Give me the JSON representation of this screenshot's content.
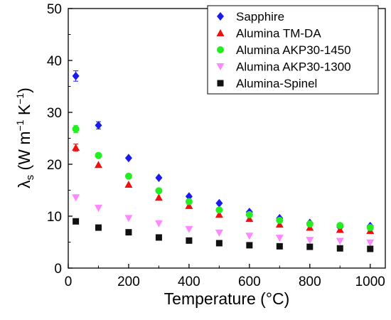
{
  "chart_data": {
    "type": "scatter",
    "title": "",
    "xlabel": "Temperature (°C)",
    "ylabel": {
      "symbol": "λ",
      "sub": "s",
      "units_open": " (W m",
      "exp1": "−1",
      "units_mid": " K",
      "exp2": "−1",
      "units_close": ")"
    },
    "xlim": [
      0,
      1050
    ],
    "ylim": [
      0,
      50
    ],
    "xticks": [
      0,
      200,
      400,
      600,
      800,
      1000
    ],
    "yticks": [
      0,
      10,
      20,
      30,
      40,
      50
    ],
    "grid": false,
    "legend_position": "top-right",
    "series": [
      {
        "name": "Sapphire",
        "marker": "diamond",
        "color": "#1a1aee",
        "points": [
          [
            25,
            37.0
          ],
          [
            100,
            27.5
          ],
          [
            200,
            21.2
          ],
          [
            300,
            17.4
          ],
          [
            400,
            13.8
          ],
          [
            500,
            12.5
          ],
          [
            600,
            10.8
          ],
          [
            700,
            9.6
          ],
          [
            800,
            8.7
          ],
          [
            900,
            7.9
          ],
          [
            1000,
            8.1
          ]
        ],
        "errors": [
          1.0,
          0.7,
          0.5,
          0.4,
          0.3,
          0.3,
          0.3,
          0.2,
          0.2,
          0.2,
          0.2
        ]
      },
      {
        "name": "Alumina TM-DA",
        "marker": "triangle-up",
        "color": "#ee1111",
        "points": [
          [
            25,
            23.2
          ],
          [
            100,
            19.9
          ],
          [
            200,
            16.1
          ],
          [
            300,
            13.6
          ],
          [
            400,
            12.0
          ],
          [
            500,
            10.3
          ],
          [
            600,
            9.5
          ],
          [
            700,
            8.4
          ],
          [
            800,
            7.8
          ],
          [
            900,
            7.4
          ],
          [
            1000,
            7.2
          ]
        ],
        "errors": [
          0.7,
          0.5,
          0.4,
          0.3,
          0.3,
          0.2,
          0.2,
          0.2,
          0.2,
          0.2,
          0.2
        ]
      },
      {
        "name": "Alumina AKP30-1450",
        "marker": "circle",
        "color": "#22ee22",
        "points": [
          [
            25,
            26.8
          ],
          [
            100,
            21.7
          ],
          [
            200,
            17.7
          ],
          [
            300,
            14.9
          ],
          [
            400,
            12.8
          ],
          [
            500,
            11.2
          ],
          [
            600,
            10.3
          ],
          [
            700,
            9.2
          ],
          [
            800,
            8.5
          ],
          [
            900,
            8.2
          ],
          [
            1000,
            7.8
          ]
        ],
        "errors": [
          0.7,
          0.5,
          0.4,
          0.3,
          0.3,
          0.3,
          0.2,
          0.2,
          0.2,
          0.2,
          0.2
        ]
      },
      {
        "name": "Alumina AKP30-1300",
        "marker": "triangle-down",
        "color": "#ff88ff",
        "points": [
          [
            25,
            13.6
          ],
          [
            100,
            11.6
          ],
          [
            200,
            9.6
          ],
          [
            300,
            8.6
          ],
          [
            400,
            7.5
          ],
          [
            500,
            6.8
          ],
          [
            600,
            6.2
          ],
          [
            700,
            5.8
          ],
          [
            800,
            5.4
          ],
          [
            900,
            5.2
          ],
          [
            1000,
            4.9
          ]
        ],
        "errors": [
          0.3,
          0.2,
          0.2,
          0.2,
          0.2,
          0.2,
          0.2,
          0.2,
          0.2,
          0.2,
          0.2
        ]
      },
      {
        "name": "Alumina-Spinel",
        "marker": "square",
        "color": "#111111",
        "points": [
          [
            25,
            9.0
          ],
          [
            100,
            7.8
          ],
          [
            200,
            6.9
          ],
          [
            300,
            5.9
          ],
          [
            400,
            5.3
          ],
          [
            500,
            4.8
          ],
          [
            600,
            4.4
          ],
          [
            700,
            4.2
          ],
          [
            800,
            4.1
          ],
          [
            900,
            3.8
          ],
          [
            1000,
            3.7
          ]
        ],
        "errors": [
          0.2,
          0.2,
          0.2,
          0.2,
          0.2,
          0.2,
          0.2,
          0.2,
          0.2,
          0.2,
          0.2
        ]
      }
    ]
  }
}
